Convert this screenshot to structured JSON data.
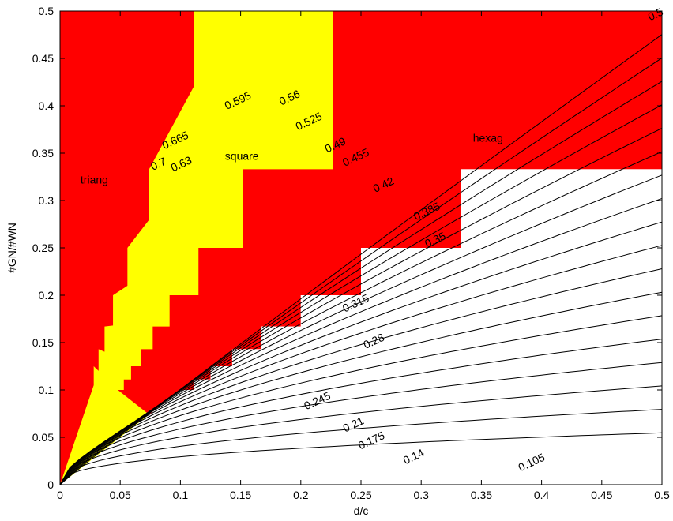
{
  "chart_data": {
    "type": "contour",
    "xlabel": "d/c",
    "ylabel": "#GN/#WN",
    "xlim": [
      0,
      0.5
    ],
    "ylim": [
      0,
      0.5
    ],
    "xticks": [
      "0",
      "0.05",
      "0.1",
      "0.15",
      "0.2",
      "0.25",
      "0.3",
      "0.35",
      "0.4",
      "0.45",
      "0.5"
    ],
    "yticks": [
      "0",
      "0.05",
      "0.1",
      "0.15",
      "0.2",
      "0.25",
      "0.3",
      "0.35",
      "0.4",
      "0.45",
      "0.5"
    ],
    "region_labels": [
      {
        "text": "triang",
        "x": 0.017,
        "y": 0.318
      },
      {
        "text": "square",
        "x": 0.137,
        "y": 0.343
      },
      {
        "text": "hexag",
        "x": 0.343,
        "y": 0.362
      }
    ],
    "colors": {
      "triang": "#ff0000",
      "square": "#ffff00",
      "hexag": "#ff0000",
      "none": "#ffffff",
      "contour": "#000000"
    },
    "regions": {
      "lower_boundary_slope": 1,
      "red_top_staircase": [
        [
          0.0,
          0.0
        ],
        [
          0.25,
          0.25
        ],
        [
          0.25,
          0.2
        ],
        [
          0.2,
          0.2
        ],
        [
          0.2,
          0.1667
        ],
        [
          0.1667,
          0.1667
        ],
        [
          0.1667,
          0.1429
        ],
        [
          0.1429,
          0.1429
        ],
        [
          0.1429,
          0.125
        ],
        [
          0.125,
          0.125
        ],
        [
          0.125,
          0.1111
        ],
        [
          0.1111,
          0.1111
        ],
        [
          0.1111,
          0.1
        ],
        [
          0.1,
          0.1
        ]
      ],
      "hexag_steps": [
        {
          "x_from": 0.333,
          "x_to": 0.5,
          "y_bottom": 0.333
        },
        {
          "x_from": 0.25,
          "x_to": 0.333,
          "y_bottom": 0.25
        },
        {
          "x_from": 0.2,
          "x_to": 0.25,
          "y_bottom": 0.2
        },
        {
          "x_from": 0.167,
          "x_to": 0.2,
          "y_bottom": 0.167
        },
        {
          "x_from": 0.143,
          "x_to": 0.167,
          "y_bottom": 0.143
        },
        {
          "x_from": 0.125,
          "x_to": 0.143,
          "y_bottom": 0.125
        },
        {
          "x_from": 0.111,
          "x_to": 0.125,
          "y_bottom": 0.111
        },
        {
          "x_from": 0.1,
          "x_to": 0.111,
          "y_bottom": 0.1
        }
      ],
      "square_outline": [
        [
          0.111,
          0.5
        ],
        [
          0.227,
          0.5
        ],
        [
          0.227,
          0.333
        ],
        [
          0.152,
          0.333
        ],
        [
          0.152,
          0.25
        ],
        [
          0.115,
          0.25
        ],
        [
          0.115,
          0.2
        ],
        [
          0.091,
          0.2
        ],
        [
          0.091,
          0.167
        ],
        [
          0.077,
          0.167
        ],
        [
          0.077,
          0.143
        ],
        [
          0.067,
          0.143
        ],
        [
          0.067,
          0.125
        ],
        [
          0.059,
          0.125
        ],
        [
          0.059,
          0.111
        ],
        [
          0.053,
          0.111
        ],
        [
          0.053,
          0.1
        ],
        [
          0.048,
          0.1
        ]
      ],
      "triang_steps": [
        {
          "x": 0.111,
          "y": 0.5
        },
        {
          "x": 0.074,
          "y": 0.333
        },
        {
          "x": 0.056,
          "y": 0.25
        },
        {
          "x": 0.044,
          "y": 0.2
        },
        {
          "x": 0.037,
          "y": 0.167
        },
        {
          "x": 0.032,
          "y": 0.143
        },
        {
          "x": 0.028,
          "y": 0.125
        }
      ]
    },
    "contour_levels": [
      0.105,
      0.14,
      0.175,
      0.21,
      0.245,
      0.28,
      0.315,
      0.35,
      0.385,
      0.42,
      0.455,
      0.49,
      0.525,
      0.56,
      0.595,
      0.63,
      0.665,
      0.7
    ],
    "contour_labels": [
      {
        "text": "0.105",
        "x": 0.393,
        "y": 0.02
      },
      {
        "text": "0.14",
        "x": 0.295,
        "y": 0.026
      },
      {
        "text": "0.175",
        "x": 0.26,
        "y": 0.043
      },
      {
        "text": "0.21",
        "x": 0.245,
        "y": 0.06
      },
      {
        "text": "0.245",
        "x": 0.215,
        "y": 0.085
      },
      {
        "text": "0.28",
        "x": 0.262,
        "y": 0.148
      },
      {
        "text": "0.315",
        "x": 0.247,
        "y": 0.188
      },
      {
        "text": "0.35",
        "x": 0.313,
        "y": 0.255
      },
      {
        "text": "0.385",
        "x": 0.306,
        "y": 0.285
      },
      {
        "text": "0.42",
        "x": 0.27,
        "y": 0.313
      },
      {
        "text": "0.455",
        "x": 0.247,
        "y": 0.342
      },
      {
        "text": "0.49",
        "x": 0.23,
        "y": 0.355
      },
      {
        "text": "0.525",
        "x": 0.208,
        "y": 0.38
      },
      {
        "text": "0.56",
        "x": 0.192,
        "y": 0.405
      },
      {
        "text": "0.595",
        "x": 0.149,
        "y": 0.402
      },
      {
        "text": "0.63",
        "x": 0.102,
        "y": 0.335
      },
      {
        "text": "0.665",
        "x": 0.097,
        "y": 0.36
      },
      {
        "text": "0.7",
        "x": 0.083,
        "y": 0.335
      },
      {
        "text": "0.5",
        "x": 0.496,
        "y": 0.493
      }
    ]
  }
}
